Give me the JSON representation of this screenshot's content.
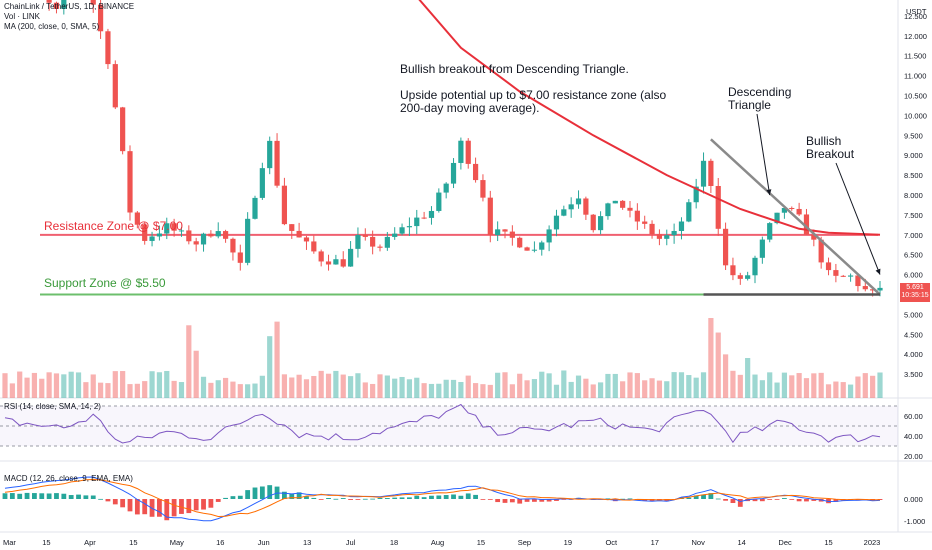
{
  "header": {
    "line1": "ChainLink / TetherUS, 1D, BINANCE",
    "line2": "Vol · LINK",
    "line3": "MA (200, close, 0, SMA, 5)",
    "currency": "USDT"
  },
  "annotations": {
    "main": "Bullish breakout from Descending Triangle.\n\nUpside potential up to $7.00 resistance zone (also\n200-day moving average).",
    "triangle": "Descending\nTriangle",
    "breakout": "Bullish\nBreakout",
    "resistance": "Resistance Zone @ $7.00",
    "support": "Support Zone @ $5.50"
  },
  "colors": {
    "up": "#26a69a",
    "down": "#ef5350",
    "ma": "#e8303a",
    "resistance": "#f06070",
    "support": "#6cbf6c",
    "trendline": "#8a8a8a",
    "rsi": "#7e57c2",
    "macd": "#2962ff",
    "signal": "#ff6d00",
    "price_badge": "#ef5350"
  },
  "price_badge": {
    "price": "5.691",
    "countdown": "10:35:15"
  },
  "chart_data": [
    {
      "type": "candlestick",
      "title": "ChainLink / TetherUS, 1D, BINANCE",
      "ylim": [
        2.9,
        12.9
      ],
      "y_ticks": [
        "12.500",
        "12.000",
        "11.500",
        "11.000",
        "10.500",
        "10.000",
        "9.500",
        "9.000",
        "8.500",
        "8.000",
        "7.500",
        "7.000",
        "6.500",
        "6.000",
        "5.500",
        "5.000",
        "4.500",
        "4.000",
        "3.500"
      ],
      "x_labels": [
        "Mar",
        "15",
        "Apr",
        "15",
        "May",
        "16",
        "Jun",
        "13",
        "Jul",
        "18",
        "Aug",
        "15",
        "Sep",
        "19",
        "Oct",
        "17",
        "Nov",
        "14",
        "Dec",
        "15",
        "2023"
      ],
      "waypoints": [
        [
          0,
          13.9
        ],
        [
          7,
          12.6
        ],
        [
          10,
          14.2
        ],
        [
          12,
          12.8
        ],
        [
          14,
          11.4
        ],
        [
          16,
          9.0
        ],
        [
          17,
          7.6
        ],
        [
          19,
          6.9
        ],
        [
          22,
          7.2
        ],
        [
          26,
          6.8
        ],
        [
          29,
          7.2
        ],
        [
          32,
          6.2
        ],
        [
          33,
          7.3
        ],
        [
          35,
          8.8
        ],
        [
          36,
          9.3
        ],
        [
          38,
          7.3
        ],
        [
          40,
          6.9
        ],
        [
          43,
          6.4
        ],
        [
          46,
          6.3
        ],
        [
          48,
          6.9
        ],
        [
          51,
          6.7
        ],
        [
          53,
          7.0
        ],
        [
          56,
          7.4
        ],
        [
          58,
          7.6
        ],
        [
          60,
          8.3
        ],
        [
          62,
          9.3
        ],
        [
          63,
          8.9
        ],
        [
          65,
          8.0
        ],
        [
          66,
          7.1
        ],
        [
          69,
          6.9
        ],
        [
          72,
          6.6
        ],
        [
          75,
          7.5
        ],
        [
          78,
          8.0
        ],
        [
          80,
          7.2
        ],
        [
          83,
          7.9
        ],
        [
          85,
          7.5
        ],
        [
          87,
          7.2
        ],
        [
          89,
          6.9
        ],
        [
          91,
          7.0
        ],
        [
          93,
          7.7
        ],
        [
          95,
          8.8
        ],
        [
          96,
          8.3
        ],
        [
          98,
          6.2
        ],
        [
          100,
          5.8
        ],
        [
          101,
          6.0
        ],
        [
          104,
          7.2
        ],
        [
          106,
          7.7
        ],
        [
          108,
          7.4
        ],
        [
          110,
          6.8
        ],
        [
          112,
          6.0
        ],
        [
          113,
          5.9
        ],
        [
          115,
          5.95
        ],
        [
          117,
          5.6
        ],
        [
          118,
          5.5
        ],
        [
          119,
          5.69
        ]
      ],
      "moving_average": {
        "name": "MA (200, close, 0, SMA, 5)",
        "points": [
          [
            46,
            16.5
          ],
          [
            55,
            13.2
          ],
          [
            62,
            11.7
          ],
          [
            70,
            10.6
          ],
          [
            80,
            9.5
          ],
          [
            90,
            8.5
          ],
          [
            100,
            7.65
          ],
          [
            108,
            7.15
          ],
          [
            112,
            7.05
          ],
          [
            119,
            7.0
          ]
        ]
      },
      "resistance": 7.0,
      "support": 5.5,
      "last_price": 5.691
    },
    {
      "type": "bar",
      "title": "Vol · LINK",
      "ylim": [
        0,
        1.1
      ],
      "spikes": [
        [
          25,
          1.0
        ],
        [
          26,
          0.65
        ],
        [
          36,
          0.85
        ],
        [
          37,
          1.05
        ],
        [
          96,
          1.2
        ],
        [
          97,
          0.9
        ],
        [
          98,
          0.6
        ],
        [
          101,
          0.55
        ]
      ]
    },
    {
      "type": "line",
      "title": "RSI (14, close, SMA, 14, 2)",
      "ylim": [
        15,
        75
      ],
      "y_ticks": [
        "60.00",
        "40.00",
        "20.00"
      ],
      "bands": [
        70,
        50,
        30
      ],
      "waypoints": [
        [
          0,
          55
        ],
        [
          8,
          48
        ],
        [
          12,
          60
        ],
        [
          16,
          32
        ],
        [
          22,
          44
        ],
        [
          28,
          38
        ],
        [
          35,
          65
        ],
        [
          40,
          42
        ],
        [
          47,
          38
        ],
        [
          55,
          52
        ],
        [
          62,
          68
        ],
        [
          66,
          45
        ],
        [
          72,
          45
        ],
        [
          80,
          55
        ],
        [
          88,
          45
        ],
        [
          95,
          68
        ],
        [
          99,
          38
        ],
        [
          106,
          54
        ],
        [
          112,
          38
        ],
        [
          116,
          38
        ],
        [
          119,
          40
        ]
      ]
    },
    {
      "type": "line",
      "title": "MACD (12, 26, close, 9, EMA, EMA)",
      "ylim": [
        -1.5,
        1.5
      ],
      "y_ticks": [
        "0.000",
        "-1.000"
      ],
      "series": [
        {
          "name": "MACD",
          "waypoints": [
            [
              0,
              0.5
            ],
            [
              6,
              0.8
            ],
            [
              12,
              1.0
            ],
            [
              16,
              0.4
            ],
            [
              22,
              -0.8
            ],
            [
              28,
              -1.0
            ],
            [
              33,
              -0.4
            ],
            [
              37,
              0.3
            ],
            [
              42,
              0.2
            ],
            [
              50,
              0.1
            ],
            [
              60,
              0.4
            ],
            [
              64,
              0.6
            ],
            [
              70,
              0.0
            ],
            [
              80,
              0.0
            ],
            [
              90,
              -0.1
            ],
            [
              96,
              0.4
            ],
            [
              100,
              -0.1
            ],
            [
              106,
              0.2
            ],
            [
              112,
              -0.1
            ],
            [
              119,
              -0.05
            ]
          ]
        },
        {
          "name": "Signal",
          "waypoints": [
            [
              0,
              0.3
            ],
            [
              6,
              0.6
            ],
            [
              12,
              0.9
            ],
            [
              17,
              0.6
            ],
            [
              23,
              -0.3
            ],
            [
              29,
              -0.8
            ],
            [
              34,
              -0.6
            ],
            [
              38,
              0.0
            ],
            [
              43,
              0.2
            ],
            [
              51,
              0.1
            ],
            [
              60,
              0.3
            ],
            [
              65,
              0.5
            ],
            [
              71,
              0.1
            ],
            [
              80,
              0.0
            ],
            [
              90,
              -0.05
            ],
            [
              97,
              0.3
            ],
            [
              101,
              0.05
            ],
            [
              107,
              0.15
            ],
            [
              113,
              0.0
            ],
            [
              119,
              -0.05
            ]
          ]
        }
      ]
    }
  ]
}
